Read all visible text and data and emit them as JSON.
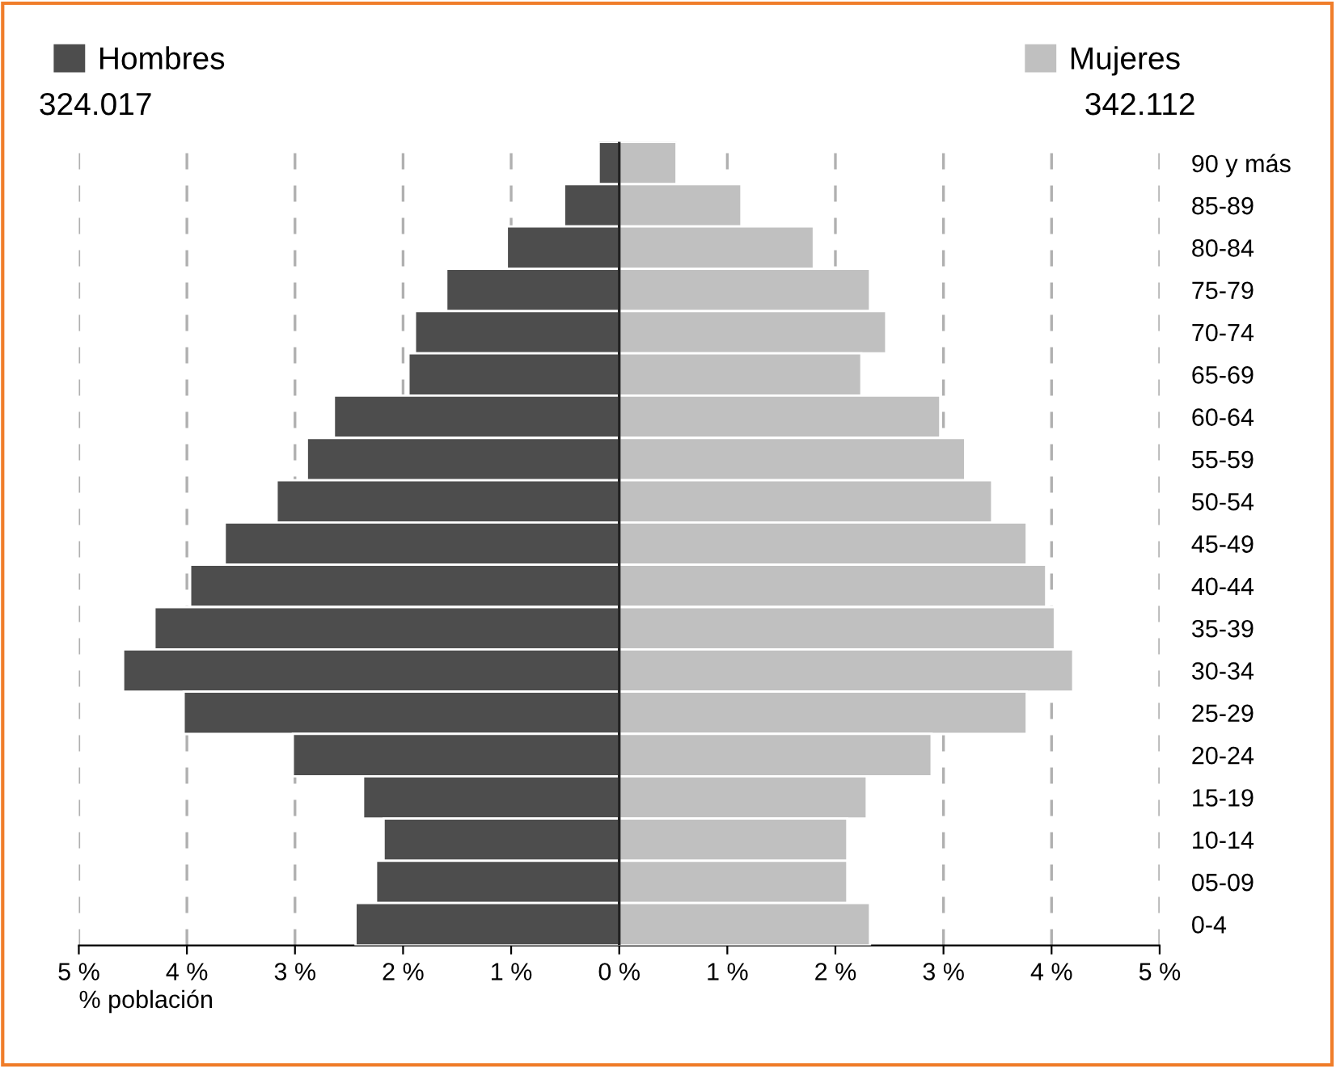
{
  "chart_data": {
    "type": "bar",
    "orientation": "horizontal",
    "stacked": true,
    "categories": [
      "90 y más",
      "85-89",
      "80-84",
      "75-79",
      "70-74",
      "65-69",
      "60-64",
      "55-59",
      "50-54",
      "45-49",
      "40-44",
      "35-39",
      "30-34",
      "25-29",
      "20-24",
      "15-19",
      "10-14",
      "05-09",
      "0-4"
    ],
    "series": [
      {
        "name": "Hombres",
        "color": "#4d4d4d",
        "values": [
          -0.19,
          -0.51,
          -1.04,
          -1.6,
          -1.89,
          -1.95,
          -2.64,
          -2.89,
          -3.17,
          -3.65,
          -3.97,
          -4.3,
          -4.59,
          -4.03,
          -3.02,
          -2.37,
          -2.18,
          -2.25,
          -2.44
        ]
      },
      {
        "name": "Mujeres",
        "color": "#c0c0c0",
        "values": [
          0.53,
          1.13,
          1.8,
          2.32,
          2.47,
          2.24,
          2.97,
          3.2,
          3.45,
          3.77,
          3.95,
          4.03,
          4.2,
          3.77,
          2.89,
          2.29,
          2.11,
          2.11,
          2.32
        ]
      }
    ],
    "xlim": [
      -5,
      5
    ],
    "xticks": [
      {
        "value": -5,
        "label": "5 %"
      },
      {
        "value": -4,
        "label": "4 %"
      },
      {
        "value": -3,
        "label": "3 %"
      },
      {
        "value": -2,
        "label": "2 %"
      },
      {
        "value": -1,
        "label": "1 %"
      },
      {
        "value": 0,
        "label": "0 %"
      },
      {
        "value": 1,
        "label": "1 %"
      },
      {
        "value": 2,
        "label": "2 %"
      },
      {
        "value": 3,
        "label": "3 %"
      },
      {
        "value": 4,
        "label": "4 %"
      },
      {
        "value": 5,
        "label": "5 %"
      }
    ],
    "xlabel": "% población",
    "annotations": [
      "324.017",
      "342.112"
    ],
    "grid": "x",
    "legend": "top"
  }
}
